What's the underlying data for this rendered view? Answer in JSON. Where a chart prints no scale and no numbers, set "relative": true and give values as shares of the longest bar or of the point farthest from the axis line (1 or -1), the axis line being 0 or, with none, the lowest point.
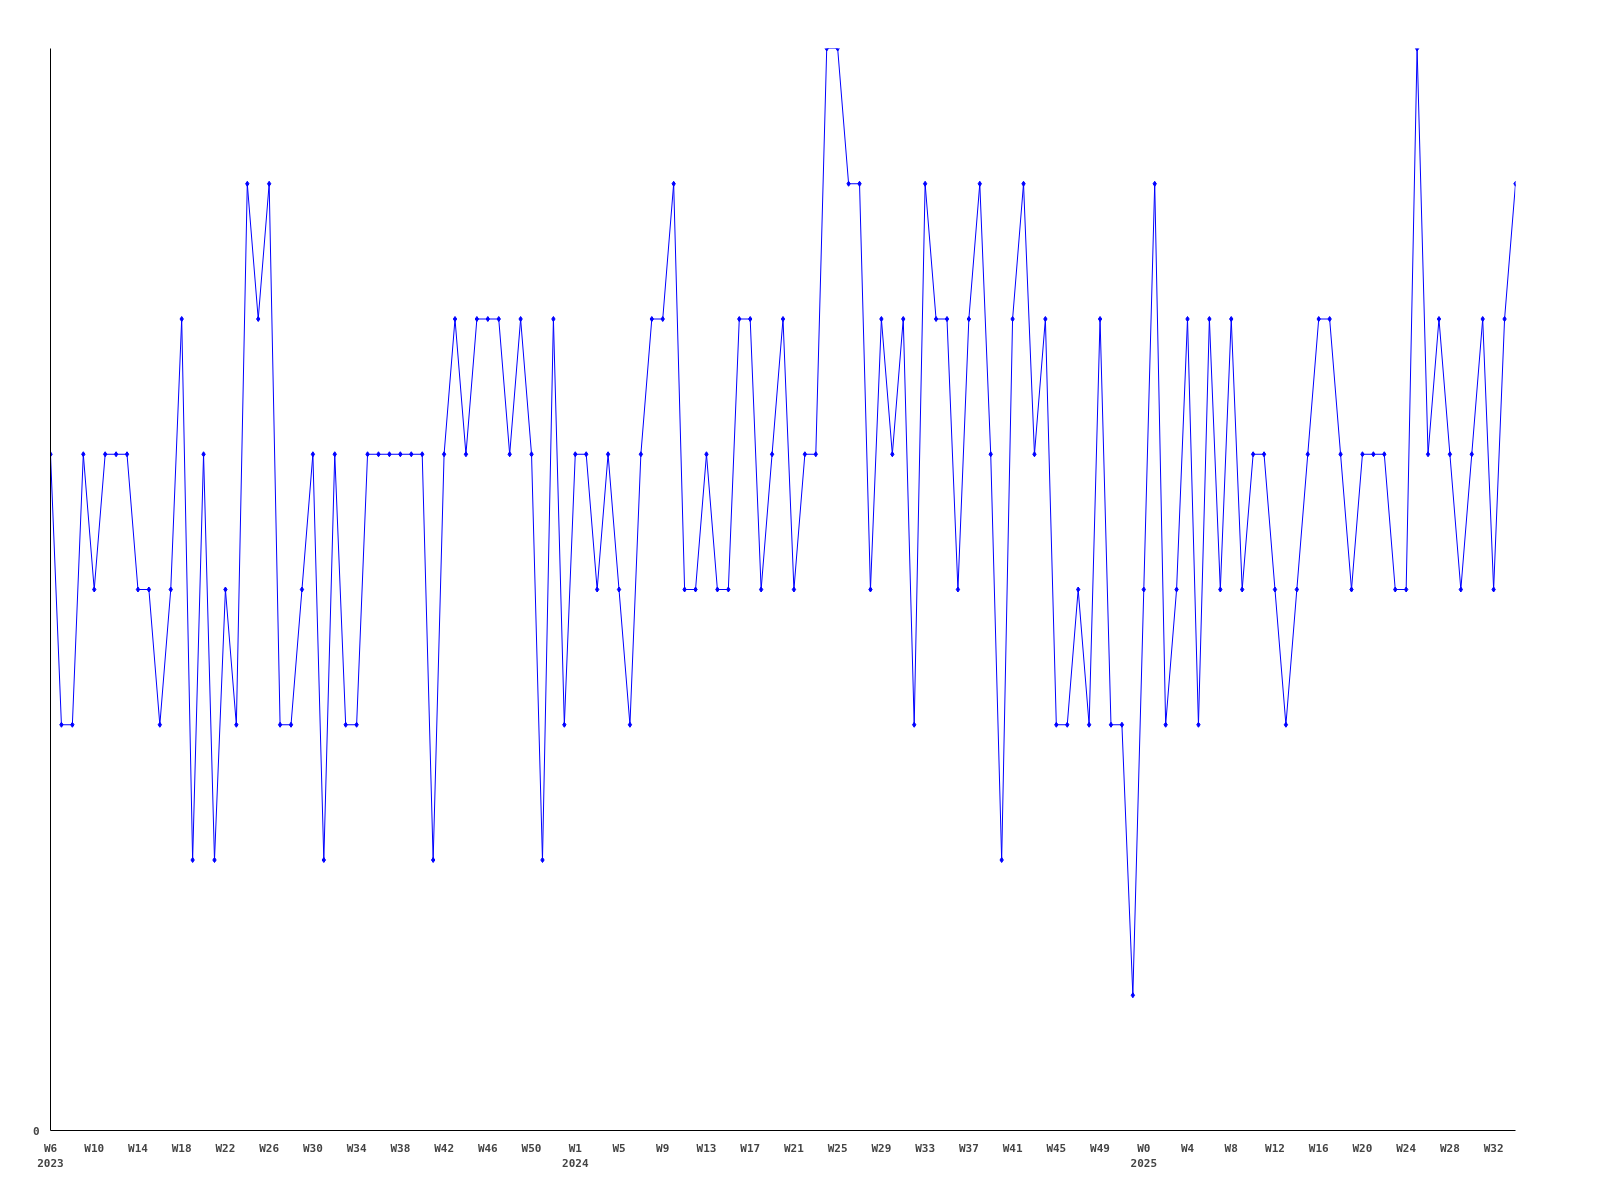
{
  "chart_data": {
    "type": "line",
    "relative": true,
    "marker": "diamond",
    "grid": false,
    "categories": [
      "W6\n2023",
      null,
      null,
      null,
      "W10",
      null,
      null,
      null,
      "W14",
      null,
      null,
      null,
      "W18",
      null,
      null,
      null,
      "W22",
      null,
      null,
      null,
      "W26",
      null,
      null,
      null,
      "W30",
      null,
      null,
      null,
      "W34",
      null,
      null,
      null,
      "W38",
      null,
      null,
      null,
      "W42",
      null,
      null,
      null,
      "W46",
      null,
      null,
      null,
      "W50",
      null,
      null,
      null,
      "W1\n2024",
      null,
      null,
      null,
      "W5",
      null,
      null,
      null,
      "W9",
      null,
      null,
      null,
      "W13",
      null,
      null,
      null,
      "W17",
      null,
      null,
      null,
      "W21",
      null,
      null,
      null,
      "W25",
      null,
      null,
      null,
      "W29",
      null,
      null,
      null,
      "W33",
      null,
      null,
      null,
      "W37",
      null,
      null,
      null,
      "W41",
      null,
      null,
      null,
      "W45",
      null,
      null,
      null,
      "W49",
      null,
      null,
      null,
      "W0\n2025",
      null,
      null,
      null,
      "W4",
      null,
      null,
      null,
      "W8",
      null,
      null,
      null,
      "W12",
      null,
      null,
      null,
      "W16",
      null,
      null,
      null,
      "W20",
      null,
      null,
      null,
      "W24",
      null,
      null,
      null,
      "W28",
      null,
      null,
      null,
      "W32",
      null,
      null
    ],
    "series": [
      {
        "color": "#0000ff",
        "values": [
          0.625,
          0.375,
          0.375,
          0.625,
          0.5,
          0.625,
          0.625,
          0.625,
          0.5,
          0.5,
          0.375,
          0.5,
          0.75,
          0.25,
          0.625,
          0.25,
          0.5,
          0.375,
          0.875,
          0.75,
          0.875,
          0.375,
          0.375,
          0.5,
          0.625,
          0.25,
          0.625,
          0.375,
          0.375,
          0.625,
          0.625,
          0.625,
          0.625,
          0.625,
          0.625,
          0.25,
          0.625,
          0.75,
          0.625,
          0.75,
          0.75,
          0.75,
          0.625,
          0.75,
          0.625,
          0.25,
          0.75,
          0.375,
          0.625,
          0.625,
          0.5,
          0.625,
          0.5,
          0.375,
          0.625,
          0.75,
          0.75,
          0.875,
          0.5,
          0.5,
          0.625,
          0.5,
          0.5,
          0.75,
          0.75,
          0.5,
          0.625,
          0.75,
          0.5,
          0.625,
          0.625,
          1,
          1,
          0.875,
          0.875,
          0.5,
          0.75,
          0.625,
          0.75,
          0.375,
          0.875,
          0.75,
          0.75,
          0.5,
          0.75,
          0.875,
          0.625,
          0.25,
          0.75,
          0.875,
          0.625,
          0.75,
          0.375,
          0.375,
          0.5,
          0.375,
          0.75,
          0.375,
          0.375,
          0.125,
          0.5,
          0.875,
          0.375,
          0.5,
          0.75,
          0.375,
          0.75,
          0.5,
          0.75,
          0.5,
          0.625,
          0.625,
          0.5,
          0.375,
          0.5,
          0.625,
          0.75,
          0.75,
          0.625,
          0.5,
          0.625,
          0.625,
          0.625,
          0.5,
          0.5,
          1,
          0.625,
          0.75,
          0.625,
          0.5,
          0.625,
          0.75,
          0.5,
          0.75,
          0.875
        ]
      }
    ],
    "annotations": [
      "0"
    ]
  }
}
